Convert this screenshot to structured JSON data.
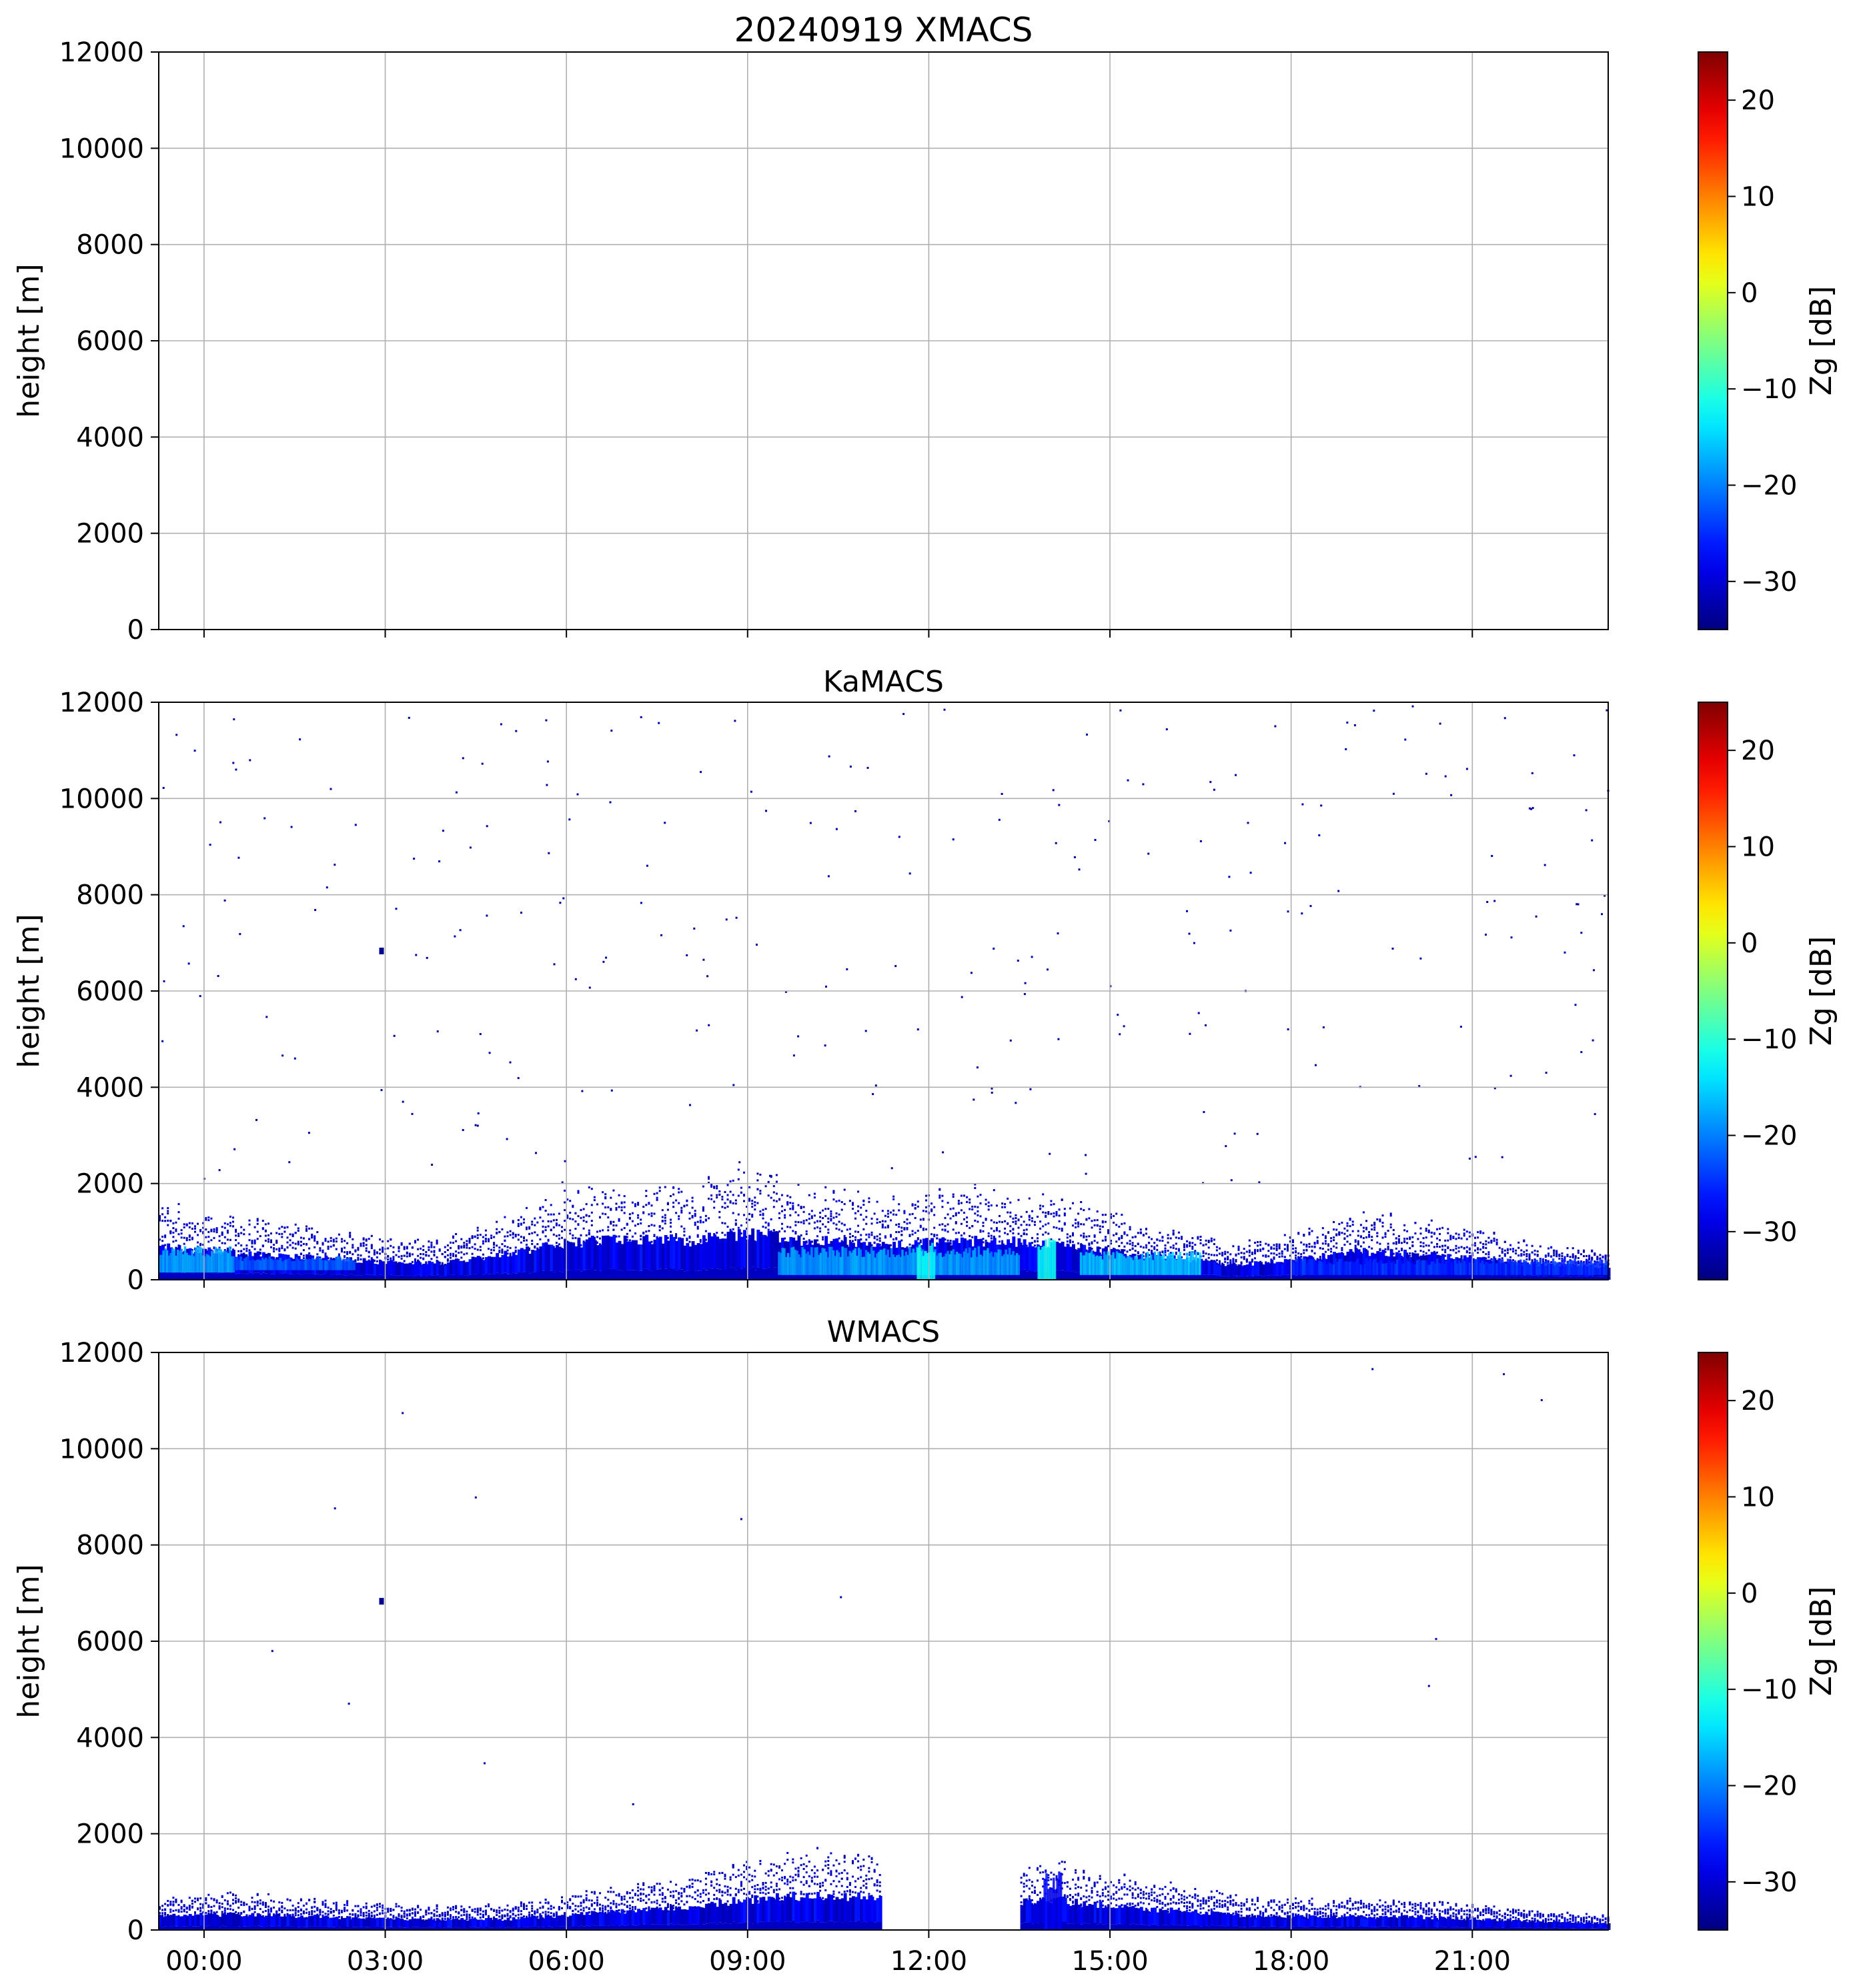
{
  "chart_data": [
    {
      "type": "heatmap",
      "title": "20240919 XMACS",
      "ylabel": "height [m]",
      "ylim": [
        0,
        12000
      ],
      "yticks": [
        "0",
        "2000",
        "4000",
        "6000",
        "8000",
        "10000",
        "12000"
      ],
      "xlim_hours": [
        -0.75,
        23.25
      ],
      "xticks": [],
      "grid": true,
      "colorbar": {
        "label": "Zg [dB]",
        "range": [
          -35,
          25
        ],
        "ticks": [
          "−30",
          "−20",
          "−10",
          "0",
          "10",
          "20"
        ],
        "colormap": "jet"
      },
      "echo_top_m": [],
      "echo": []
    },
    {
      "type": "heatmap",
      "title": "KaMACS",
      "ylabel": "height [m]",
      "ylim": [
        0,
        12000
      ],
      "yticks": [
        "0",
        "2000",
        "4000",
        "6000",
        "8000",
        "10000",
        "12000"
      ],
      "xlim_hours": [
        -0.75,
        23.25
      ],
      "xticks": [],
      "grid": true,
      "colorbar": {
        "label": "Zg [dB]",
        "range": [
          -35,
          25
        ],
        "ticks": [
          "−30",
          "−20",
          "−10",
          "0",
          "10",
          "20"
        ],
        "colormap": "jet"
      },
      "echo_top_m": [
        {
          "t": -0.75,
          "top": 1500
        },
        {
          "t": 0.5,
          "top": 1200
        },
        {
          "t": 2,
          "top": 1000
        },
        {
          "t": 3,
          "top": 800
        },
        {
          "t": 4,
          "top": 800
        },
        {
          "t": 5,
          "top": 1200
        },
        {
          "t": 6,
          "top": 1700
        },
        {
          "t": 7,
          "top": 1900
        },
        {
          "t": 8,
          "top": 1800
        },
        {
          "t": 9,
          "top": 2100
        },
        {
          "t": 10,
          "top": 1800
        },
        {
          "t": 11,
          "top": 1700
        },
        {
          "t": 12,
          "top": 1700
        },
        {
          "t": 13,
          "top": 1800
        },
        {
          "t": 14,
          "top": 1700
        },
        {
          "t": 15,
          "top": 1300
        },
        {
          "t": 16,
          "top": 1000
        },
        {
          "t": 17,
          "top": 700
        },
        {
          "t": 18,
          "top": 900
        },
        {
          "t": 19,
          "top": 1300
        },
        {
          "t": 20,
          "top": 1200
        },
        {
          "t": 21,
          "top": 1000
        },
        {
          "t": 22,
          "top": 700
        },
        {
          "t": 23.25,
          "top": 600
        }
      ],
      "echo": [
        {
          "t0": -0.75,
          "t1": 0.5,
          "z0": 150,
          "z1": 700,
          "dbz": -18
        },
        {
          "t0": 0.5,
          "t1": 2.5,
          "z0": 200,
          "z1": 500,
          "dbz": -22
        },
        {
          "t0": 9.5,
          "t1": 13.5,
          "z0": 100,
          "z1": 700,
          "dbz": -18
        },
        {
          "t0": 11.8,
          "t1": 12.1,
          "z0": 0,
          "z1": 800,
          "dbz": -12
        },
        {
          "t0": 13.8,
          "t1": 14.1,
          "z0": 0,
          "z1": 900,
          "dbz": -12
        },
        {
          "t0": 14.5,
          "t1": 16.5,
          "z0": 100,
          "z1": 600,
          "dbz": -16
        },
        {
          "t0": 18,
          "t1": 23.25,
          "z0": 100,
          "z1": 450,
          "dbz": -25
        }
      ]
    },
    {
      "type": "heatmap",
      "title": "WMACS",
      "ylabel": "height [m]",
      "ylim": [
        0,
        12000
      ],
      "yticks": [
        "0",
        "2000",
        "4000",
        "6000",
        "8000",
        "10000",
        "12000"
      ],
      "xlim_hours": [
        -0.75,
        23.25
      ],
      "xticks": [
        "00:00",
        "03:00",
        "06:00",
        "09:00",
        "12:00",
        "15:00",
        "18:00",
        "21:00"
      ],
      "grid": true,
      "colorbar": {
        "label": "Zg [dB]",
        "range": [
          -35,
          25
        ],
        "ticks": [
          "−30",
          "−20",
          "−10",
          "0",
          "10",
          "20"
        ],
        "colormap": "jet"
      },
      "data_gap_hours": [
        11.2,
        13.5
      ],
      "echo_top_m": [
        {
          "t": -0.75,
          "top": 700
        },
        {
          "t": 1,
          "top": 700
        },
        {
          "t": 3,
          "top": 500
        },
        {
          "t": 5,
          "top": 500
        },
        {
          "t": 6,
          "top": 700
        },
        {
          "t": 7,
          "top": 900
        },
        {
          "t": 8,
          "top": 1100
        },
        {
          "t": 9,
          "top": 1400
        },
        {
          "t": 10,
          "top": 1600
        },
        {
          "t": 11.2,
          "top": 1500
        },
        {
          "t": 13.5,
          "top": 1300
        },
        {
          "t": 14,
          "top": 1400
        },
        {
          "t": 15,
          "top": 1100
        },
        {
          "t": 16,
          "top": 900
        },
        {
          "t": 17,
          "top": 700
        },
        {
          "t": 18,
          "top": 600
        },
        {
          "t": 20,
          "top": 600
        },
        {
          "t": 22,
          "top": 400
        },
        {
          "t": 23.25,
          "top": 300
        }
      ],
      "echo": [
        {
          "t0": 13.9,
          "t1": 14.2,
          "z0": 0,
          "z1": 1300,
          "dbz": -28
        }
      ]
    }
  ]
}
